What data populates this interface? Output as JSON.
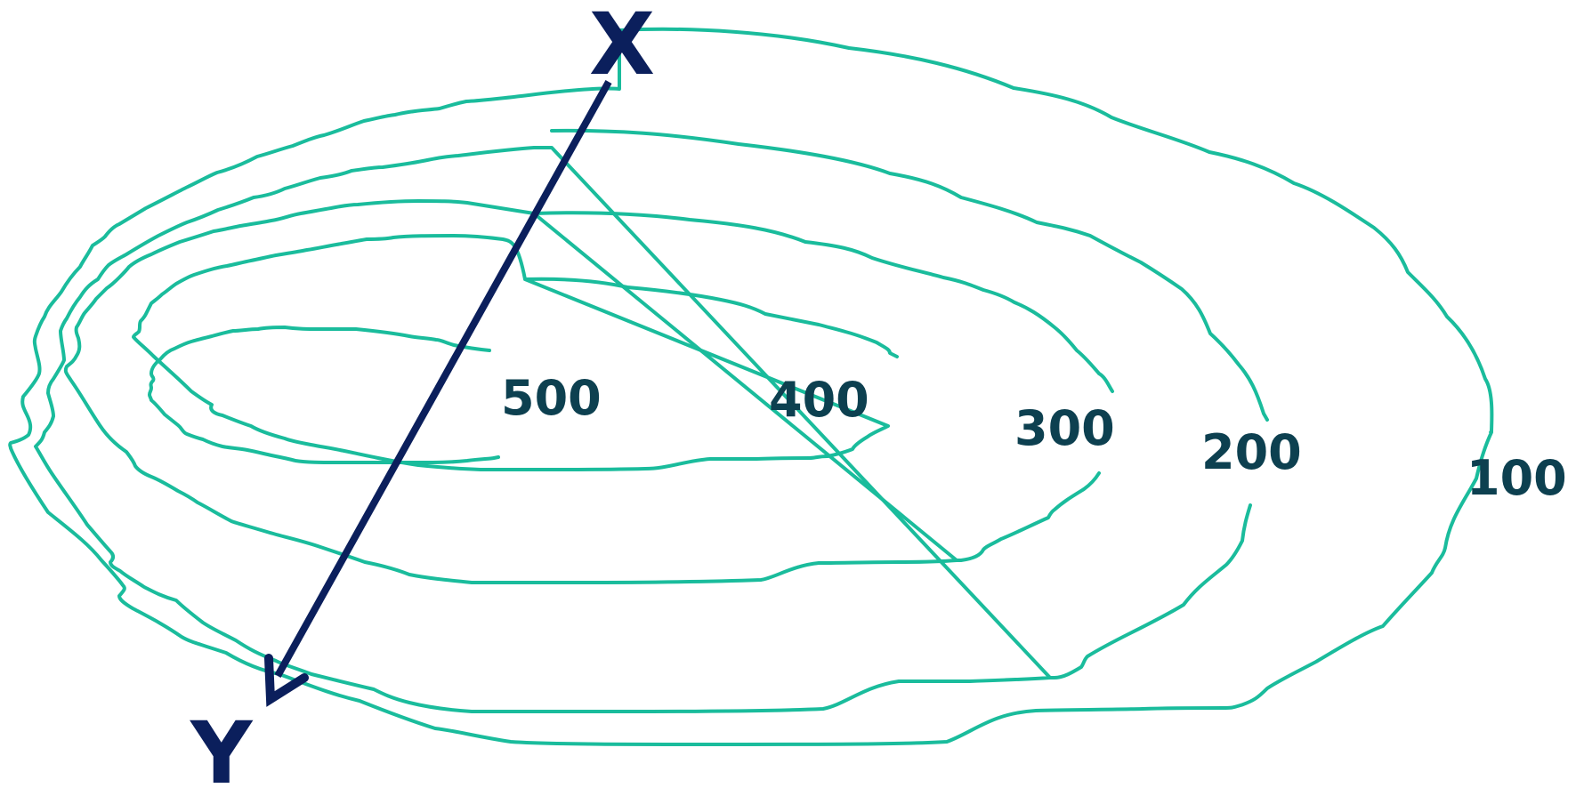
{
  "colors": {
    "contour": "#1abc9c",
    "label": "#0d4050",
    "transect": "#0b1f5c",
    "background": "#ffffff"
  },
  "diagram": {
    "contours": [
      {
        "elevation": "100"
      },
      {
        "elevation": "200"
      },
      {
        "elevation": "300"
      },
      {
        "elevation": "400"
      },
      {
        "elevation": "500"
      }
    ],
    "transect": {
      "start_label": "X",
      "end_label": "Y"
    }
  }
}
